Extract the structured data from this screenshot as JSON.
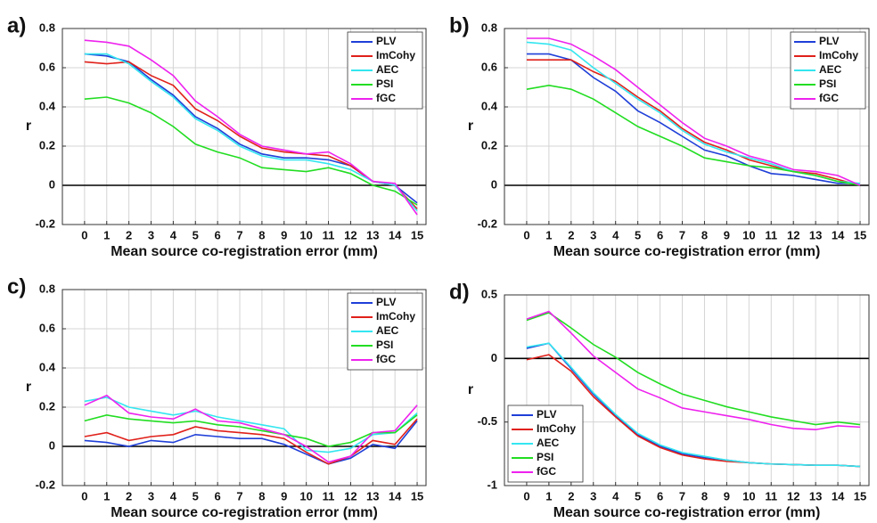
{
  "chart_data": [
    {
      "type": "line",
      "label": "a)",
      "xlabel": "Mean source co-registration error (mm)",
      "ylabel": "r",
      "x": [
        0,
        1,
        2,
        3,
        4,
        5,
        6,
        7,
        8,
        9,
        10,
        11,
        12,
        13,
        14,
        15
      ],
      "xlim": [
        -1,
        15.4
      ],
      "xticks": [
        0,
        1,
        2,
        3,
        4,
        5,
        6,
        7,
        8,
        9,
        10,
        11,
        12,
        13,
        14,
        15
      ],
      "ylim": [
        -0.2,
        0.8
      ],
      "yticks": [
        -0.2,
        0,
        0.2,
        0.4,
        0.6,
        0.8
      ],
      "grid": true,
      "zero_line": true,
      "legend": "upper right",
      "series": [
        {
          "name": "PLV",
          "color": "#1f3fd8",
          "values": [
            0.67,
            0.66,
            0.63,
            0.54,
            0.46,
            0.35,
            0.29,
            0.21,
            0.16,
            0.14,
            0.14,
            0.13,
            0.1,
            0.02,
            0.0,
            -0.09
          ]
        },
        {
          "name": "ImCohy",
          "color": "#e0201a",
          "values": [
            0.63,
            0.62,
            0.63,
            0.56,
            0.51,
            0.39,
            0.33,
            0.25,
            0.19,
            0.17,
            0.16,
            0.15,
            0.1,
            0.02,
            0.0,
            -0.12
          ]
        },
        {
          "name": "AEC",
          "color": "#33e6f0",
          "values": [
            0.67,
            0.67,
            0.62,
            0.53,
            0.45,
            0.34,
            0.28,
            0.2,
            0.15,
            0.13,
            0.13,
            0.11,
            0.08,
            0.02,
            0.0,
            -0.13
          ]
        },
        {
          "name": "PSI",
          "color": "#22dd22",
          "values": [
            0.44,
            0.45,
            0.42,
            0.37,
            0.3,
            0.21,
            0.17,
            0.14,
            0.09,
            0.08,
            0.07,
            0.09,
            0.06,
            0.0,
            -0.03,
            -0.1
          ]
        },
        {
          "name": "fGC",
          "color": "#ee22ee",
          "values": [
            0.74,
            0.73,
            0.71,
            0.64,
            0.56,
            0.43,
            0.35,
            0.26,
            0.2,
            0.18,
            0.16,
            0.17,
            0.11,
            0.02,
            0.01,
            -0.15
          ]
        }
      ]
    },
    {
      "type": "line",
      "label": "b)",
      "xlabel": "Mean source co-registration error (mm)",
      "ylabel": "r",
      "x": [
        0,
        1,
        2,
        3,
        4,
        5,
        6,
        7,
        8,
        9,
        10,
        11,
        12,
        13,
        14,
        15
      ],
      "xlim": [
        -1,
        15.4
      ],
      "xticks": [
        0,
        1,
        2,
        3,
        4,
        5,
        6,
        7,
        8,
        9,
        10,
        11,
        12,
        13,
        14,
        15
      ],
      "ylim": [
        -0.2,
        0.8
      ],
      "yticks": [
        -0.2,
        0,
        0.2,
        0.4,
        0.6,
        0.8
      ],
      "grid": true,
      "zero_line": true,
      "legend": "upper right",
      "series": [
        {
          "name": "PLV",
          "color": "#1f3fd8",
          "values": [
            0.67,
            0.67,
            0.64,
            0.55,
            0.48,
            0.38,
            0.32,
            0.25,
            0.18,
            0.15,
            0.1,
            0.06,
            0.05,
            0.03,
            0.01,
            0.01
          ]
        },
        {
          "name": "ImCohy",
          "color": "#e0201a",
          "values": [
            0.64,
            0.64,
            0.64,
            0.58,
            0.53,
            0.45,
            0.38,
            0.29,
            0.22,
            0.18,
            0.13,
            0.1,
            0.07,
            0.06,
            0.03,
            0.0
          ]
        },
        {
          "name": "AEC",
          "color": "#33e6f0",
          "values": [
            0.73,
            0.72,
            0.69,
            0.6,
            0.52,
            0.44,
            0.37,
            0.28,
            0.21,
            0.17,
            0.14,
            0.11,
            0.07,
            0.05,
            0.02,
            0.01
          ]
        },
        {
          "name": "PSI",
          "color": "#22dd22",
          "values": [
            0.49,
            0.51,
            0.49,
            0.44,
            0.37,
            0.3,
            0.25,
            0.2,
            0.14,
            0.12,
            0.1,
            0.09,
            0.07,
            0.05,
            0.02,
            0.0
          ]
        },
        {
          "name": "fGC",
          "color": "#ee22ee",
          "values": [
            0.75,
            0.75,
            0.72,
            0.66,
            0.59,
            0.5,
            0.41,
            0.32,
            0.24,
            0.2,
            0.15,
            0.12,
            0.08,
            0.07,
            0.05,
            0.0
          ]
        }
      ]
    },
    {
      "type": "line",
      "label": "c)",
      "xlabel": "Mean source co-registration error (mm)",
      "ylabel": "r",
      "x": [
        0,
        1,
        2,
        3,
        4,
        5,
        6,
        7,
        8,
        9,
        10,
        11,
        12,
        13,
        14,
        15
      ],
      "xlim": [
        -1,
        15.4
      ],
      "xticks": [
        0,
        1,
        2,
        3,
        4,
        5,
        6,
        7,
        8,
        9,
        10,
        11,
        12,
        13,
        14,
        15
      ],
      "ylim": [
        -0.2,
        0.8
      ],
      "yticks": [
        -0.2,
        0,
        0.2,
        0.4,
        0.6,
        0.8
      ],
      "grid": true,
      "zero_line": true,
      "legend": "upper right",
      "series": [
        {
          "name": "PLV",
          "color": "#1f3fd8",
          "values": [
            0.03,
            0.02,
            0.0,
            0.03,
            0.02,
            0.06,
            0.05,
            0.04,
            0.04,
            0.01,
            -0.04,
            -0.09,
            -0.06,
            0.01,
            -0.01,
            0.13
          ]
        },
        {
          "name": "ImCohy",
          "color": "#e0201a",
          "values": [
            0.05,
            0.07,
            0.03,
            0.05,
            0.06,
            0.1,
            0.08,
            0.07,
            0.06,
            0.04,
            -0.03,
            -0.09,
            -0.05,
            0.03,
            0.01,
            0.14
          ]
        },
        {
          "name": "AEC",
          "color": "#33e6f0",
          "values": [
            0.23,
            0.25,
            0.2,
            0.18,
            0.16,
            0.18,
            0.15,
            0.13,
            0.11,
            0.09,
            -0.02,
            -0.03,
            -0.01,
            0.06,
            0.07,
            0.17
          ]
        },
        {
          "name": "PSI",
          "color": "#22dd22",
          "values": [
            0.13,
            0.16,
            0.14,
            0.13,
            0.12,
            0.13,
            0.11,
            0.1,
            0.08,
            0.06,
            0.04,
            0.0,
            0.02,
            0.07,
            0.07,
            0.16
          ]
        },
        {
          "name": "fGC",
          "color": "#ee22ee",
          "values": [
            0.21,
            0.26,
            0.17,
            0.15,
            0.14,
            0.19,
            0.13,
            0.12,
            0.09,
            0.06,
            0.0,
            -0.08,
            -0.05,
            0.07,
            0.08,
            0.21
          ]
        }
      ]
    },
    {
      "type": "line",
      "label": "d)",
      "xlabel": "Mean source co-registration error (mm)",
      "ylabel": "r",
      "x": [
        0,
        1,
        2,
        3,
        4,
        5,
        6,
        7,
        8,
        9,
        10,
        11,
        12,
        13,
        14,
        15
      ],
      "xlim": [
        -1,
        15.4
      ],
      "xticks": [
        0,
        1,
        2,
        3,
        4,
        5,
        6,
        7,
        8,
        9,
        10,
        11,
        12,
        13,
        14,
        15
      ],
      "ylim": [
        -1,
        0.5
      ],
      "yticks": [
        -1,
        -0.5,
        0,
        0.5
      ],
      "grid": true,
      "zero_line": true,
      "legend": "lower left",
      "series": [
        {
          "name": "PLV",
          "color": "#1f3fd8",
          "values": [
            0.08,
            0.12,
            -0.08,
            -0.28,
            -0.45,
            -0.6,
            -0.69,
            -0.75,
            -0.78,
            -0.8,
            -0.82,
            -0.83,
            -0.835,
            -0.84,
            -0.84,
            -0.85
          ]
        },
        {
          "name": "ImCohy",
          "color": "#e0201a",
          "values": [
            -0.01,
            0.03,
            -0.1,
            -0.3,
            -0.46,
            -0.61,
            -0.7,
            -0.76,
            -0.79,
            -0.81,
            -0.82,
            -0.83,
            -0.835,
            -0.84,
            -0.84,
            -0.85
          ]
        },
        {
          "name": "AEC",
          "color": "#33e6f0",
          "values": [
            0.09,
            0.12,
            -0.07,
            -0.27,
            -0.44,
            -0.59,
            -0.68,
            -0.74,
            -0.77,
            -0.8,
            -0.82,
            -0.83,
            -0.835,
            -0.84,
            -0.84,
            -0.85
          ]
        },
        {
          "name": "PSI",
          "color": "#22dd22",
          "values": [
            0.3,
            0.36,
            0.24,
            0.11,
            0.01,
            -0.11,
            -0.2,
            -0.28,
            -0.33,
            -0.38,
            -0.42,
            -0.46,
            -0.49,
            -0.52,
            -0.5,
            -0.52
          ]
        },
        {
          "name": "fGC",
          "color": "#ee22ee",
          "values": [
            0.31,
            0.37,
            0.2,
            0.02,
            -0.11,
            -0.24,
            -0.31,
            -0.39,
            -0.42,
            -0.45,
            -0.48,
            -0.52,
            -0.55,
            -0.56,
            -0.53,
            -0.54
          ]
        }
      ]
    }
  ]
}
